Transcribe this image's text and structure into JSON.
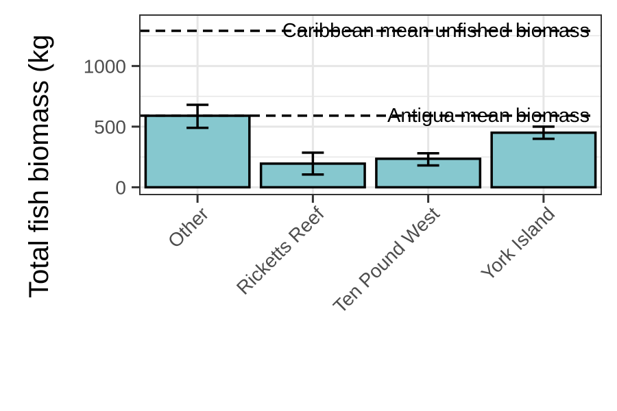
{
  "chart_data": {
    "type": "bar",
    "title": "",
    "xlabel": "",
    "ylabel": "Total fish biomass (kg",
    "categories": [
      "Other",
      "Ricketts Reef",
      "Ten Pound West",
      "York Island"
    ],
    "values": [
      590,
      195,
      235,
      450
    ],
    "error_low": [
      490,
      105,
      180,
      400
    ],
    "error_high": [
      680,
      285,
      280,
      500
    ],
    "ylim": [
      -60,
      1420
    ],
    "yticks": [
      0,
      500,
      1000
    ],
    "grid": true,
    "reference_lines": [
      {
        "label": "Caribbean mean unfished biomass",
        "value": 1290
      },
      {
        "label": "Antigua mean biomass",
        "value": 590
      }
    ],
    "colors": {
      "bar_fill": "#86c8cf",
      "bar_stroke": "#000000",
      "grid": "#e6e6e6",
      "panel_border": "#333333"
    }
  }
}
